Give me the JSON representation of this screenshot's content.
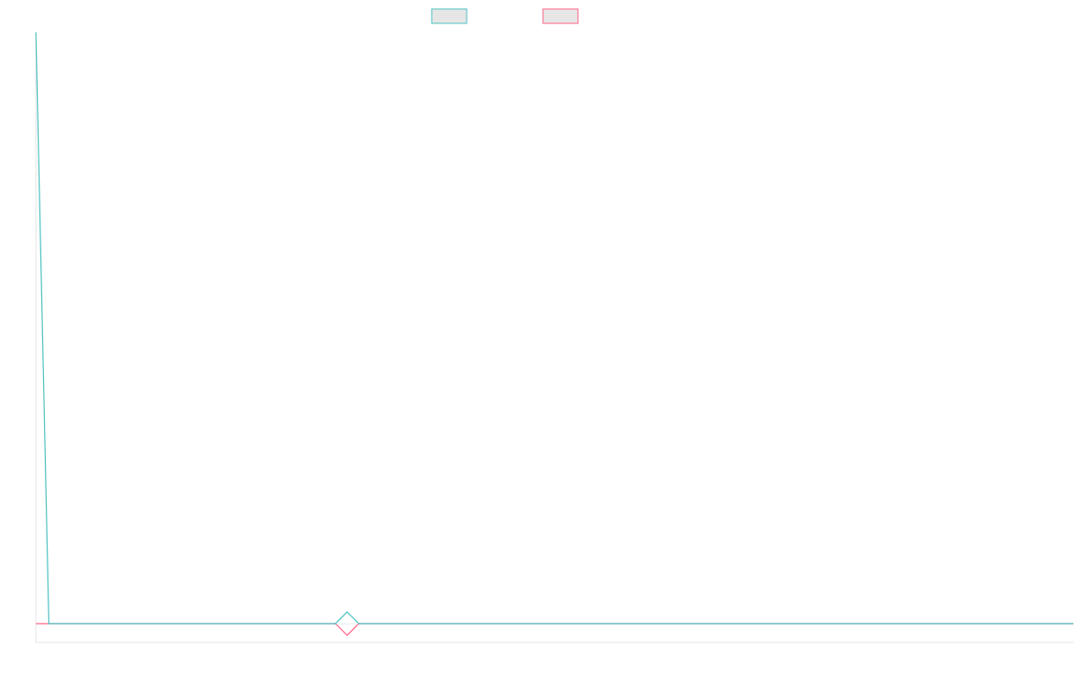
{
  "chart_data": {
    "type": "line",
    "x": [
      0,
      1,
      2,
      3,
      4,
      5,
      6,
      7,
      8,
      9,
      10,
      11,
      12,
      13,
      14,
      15,
      16,
      17,
      18,
      19,
      20,
      21,
      22,
      23,
      24,
      25,
      26,
      27,
      28,
      29,
      30,
      31,
      32,
      33,
      34,
      35,
      36,
      37,
      38,
      39,
      40,
      41,
      42,
      43,
      44,
      45,
      46,
      47,
      48,
      49,
      50,
      51,
      52,
      53,
      54,
      55,
      56,
      57,
      58,
      59,
      60,
      61,
      62,
      63,
      64,
      65,
      66,
      67,
      68,
      69,
      70,
      71,
      72,
      73,
      74,
      75,
      76,
      77,
      78,
      79,
      80
    ],
    "series": [
      {
        "color": "#4bc0c0",
        "values": [
          100,
          1.5,
          1.5,
          1.5,
          1.5,
          1.5,
          1.5,
          1.5,
          1.5,
          1.5,
          1.5,
          1.5,
          1.5,
          1.5,
          1.5,
          1.5,
          1.5,
          1.5,
          1.5,
          1.5,
          1.5,
          1.5,
          1.5,
          1.5,
          1.5,
          1.5,
          1.5,
          1.5,
          1.5,
          1.5,
          1.5,
          1.5,
          1.5,
          1.5,
          1.5,
          1.5,
          1.5,
          1.5,
          1.5,
          1.5,
          1.5,
          1.5,
          1.5,
          1.5,
          1.5,
          1.5,
          1.5,
          1.5,
          1.5,
          1.5,
          1.5,
          1.5,
          1.5,
          1.5,
          1.5,
          1.5,
          1.5,
          1.5,
          1.5,
          1.5,
          1.5,
          1.5,
          1.5,
          1.5,
          1.5,
          1.5,
          1.5,
          1.5,
          1.5,
          1.5,
          1.5,
          1.5,
          1.5,
          1.5,
          1.5,
          1.5,
          1.5,
          1.5,
          1.5,
          1.5,
          1.5
        ]
      },
      {
        "color": "#ff6384",
        "values": [
          1.5,
          1.5,
          1.5,
          1.5,
          1.5,
          1.5,
          1.5,
          1.5,
          1.5,
          1.5,
          1.5,
          1.5,
          1.5,
          1.5,
          1.5,
          1.5,
          1.5,
          1.5,
          1.5,
          1.5,
          1.5,
          1.5,
          1.5,
          1.5,
          1.5,
          1.5,
          1.5,
          1.5,
          1.5,
          1.5,
          1.5,
          1.5,
          1.5,
          1.5,
          1.5,
          1.5,
          1.5,
          1.5,
          1.5,
          1.5,
          1.5,
          1.5,
          1.5,
          1.5,
          1.5,
          1.5,
          1.5,
          1.5,
          1.5,
          1.5,
          1.5,
          1.5,
          1.5,
          1.5,
          1.5,
          1.5,
          1.5,
          1.5,
          1.5,
          1.5,
          1.5,
          1.5,
          1.5,
          1.5,
          1.5,
          1.5,
          1.5,
          1.5,
          1.5,
          1.5,
          1.5,
          1.5,
          1.5,
          1.5,
          1.5,
          1.5,
          1.5,
          1.5,
          1.5,
          1.5,
          1.5
        ]
      }
    ],
    "hover_index": 24,
    "ylim": [
      0,
      100
    ],
    "xlim": [
      0,
      80
    ],
    "grid": false,
    "legend_position": "top-center"
  }
}
